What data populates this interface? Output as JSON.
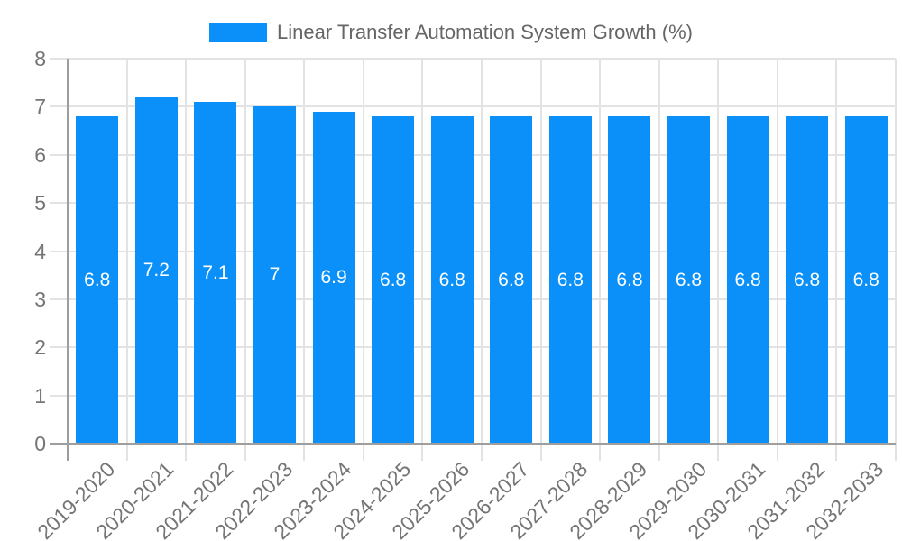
{
  "legend": {
    "label": "Linear Transfer Automation System Growth (%)"
  },
  "chart_data": {
    "type": "bar",
    "title": "Linear Transfer Automation System Growth (%)",
    "categories": [
      "2019-2020",
      "2020-2021",
      "2021-2022",
      "2022-2023",
      "2023-2024",
      "2024-2025",
      "2025-2026",
      "2026-2027",
      "2027-2028",
      "2028-2029",
      "2029-2030",
      "2030-2031",
      "2031-2032",
      "2032-2033"
    ],
    "values": [
      6.8,
      7.2,
      7.1,
      7,
      6.9,
      6.8,
      6.8,
      6.8,
      6.8,
      6.8,
      6.8,
      6.8,
      6.8,
      6.8
    ],
    "value_labels": [
      "6.8",
      "7.2",
      "7.1",
      "7",
      "6.9",
      "6.8",
      "6.8",
      "6.8",
      "6.8",
      "6.8",
      "6.8",
      "6.8",
      "6.8",
      "6.8"
    ],
    "xlabel": "",
    "ylabel": "",
    "ylim": [
      0,
      8
    ],
    "yticks": [
      0,
      1,
      2,
      3,
      4,
      5,
      6,
      7,
      8
    ],
    "ytick_labels": [
      "0",
      "1",
      "2",
      "3",
      "4",
      "5",
      "6",
      "7",
      "8"
    ],
    "grid": true,
    "legend_position": "top",
    "bar_color": "#0a90f8",
    "value_label_color": "#ffffff",
    "tick_label_color": "#757575",
    "legend_text_color": "#666666",
    "grid_color": "#e3e3e3",
    "axis_color": "#9e9e9e",
    "background_color": "#ffffff"
  }
}
